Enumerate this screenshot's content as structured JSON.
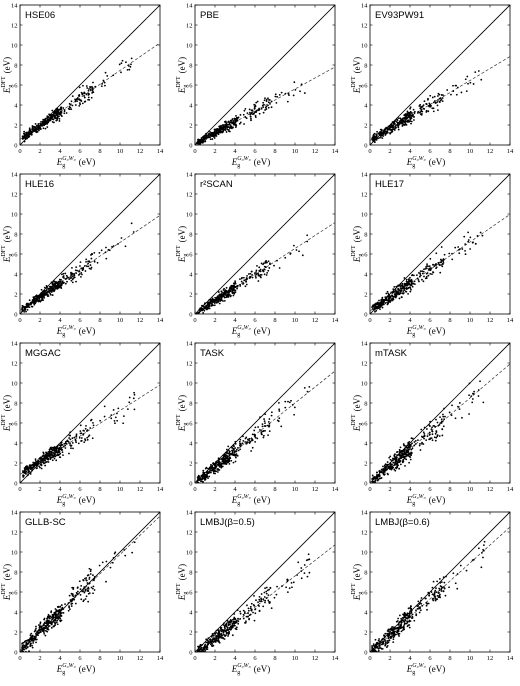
{
  "chart_data": {
    "type": "scatter",
    "grid": false,
    "legend": "none",
    "xlabel": {
      "symbol": "E",
      "sub": "g",
      "sup": "G₀W₀",
      "unit": "(eV)"
    },
    "ylabel": {
      "symbol": "E",
      "sub": "g",
      "sup": "DFT",
      "unit": "(eV)"
    },
    "xlim": [
      0,
      14
    ],
    "ylim": [
      0,
      14
    ],
    "ticks": [
      0,
      2,
      4,
      6,
      8,
      10,
      12,
      14
    ],
    "reference_line": "y = x",
    "colors": {
      "points": "#000000",
      "identity_line": "#000000",
      "fit_line": "#333333"
    },
    "panels": [
      {
        "title": "HSE06",
        "fit_slope": 0.69,
        "fit_intercept": 0.55,
        "noise": 0.3
      },
      {
        "title": "PBE",
        "fit_slope": 0.55,
        "fit_intercept": 0.1,
        "noise": 0.25
      },
      {
        "title": "EV93PW91",
        "fit_slope": 0.6,
        "fit_intercept": 0.45,
        "noise": 0.3
      },
      {
        "title": "HLE16",
        "fit_slope": 0.68,
        "fit_intercept": 0.35,
        "noise": 0.3
      },
      {
        "title": "r²SCAN",
        "fit_slope": 0.65,
        "fit_intercept": 0.05,
        "noise": 0.28
      },
      {
        "title": "HLE17",
        "fit_slope": 0.69,
        "fit_intercept": 0.3,
        "noise": 0.35
      },
      {
        "title": "MGGAC",
        "fit_slope": 0.64,
        "fit_intercept": 0.85,
        "noise": 0.35
      },
      {
        "title": "TASK",
        "fit_slope": 0.8,
        "fit_intercept": 0.0,
        "noise": 0.4
      },
      {
        "title": "mTASK",
        "fit_slope": 0.85,
        "fit_intercept": 0.0,
        "noise": 0.45
      },
      {
        "title": "GLLB-SC",
        "fit_slope": 0.96,
        "fit_intercept": 0.15,
        "noise": 0.5
      },
      {
        "title": "LMBJ(β=0.5)",
        "fit_slope": 0.78,
        "fit_intercept": -0.2,
        "noise": 0.4
      },
      {
        "title": "LMBJ(β=0.6)",
        "fit_slope": 0.9,
        "fit_intercept": -0.1,
        "noise": 0.45
      }
    ]
  }
}
